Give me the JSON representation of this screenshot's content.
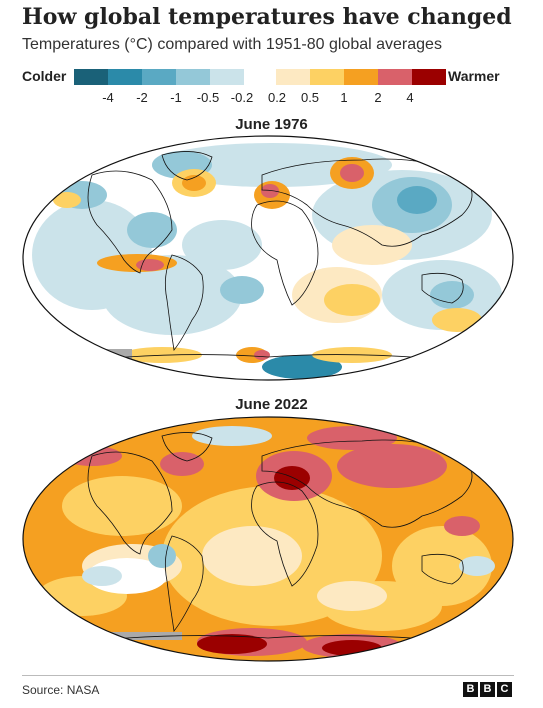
{
  "header": {
    "title": "How global temperatures have changed",
    "subtitle": "Temperatures (°C) compared with 1951-80 global averages"
  },
  "legend": {
    "cold_label": "Colder",
    "warm_label": "Warmer",
    "cold_colors": [
      "#1a6178",
      "#2b8aa9",
      "#5aa9c3",
      "#94c8d8",
      "#cbe3ea"
    ],
    "warm_colors": [
      "#fde9c2",
      "#fdd163",
      "#f5a021",
      "#d9616a",
      "#9b0000"
    ],
    "ticks": [
      "-4",
      "-2",
      "-1",
      "-0.5",
      "-0.2",
      "0.2",
      "0.5",
      "1",
      "2",
      "4"
    ]
  },
  "maps": [
    {
      "title": "June 1976",
      "tone": "cold"
    },
    {
      "title": "June 2022",
      "tone": "warm"
    }
  ],
  "footer": {
    "source": "Source: NASA",
    "logo": [
      "B",
      "B",
      "C"
    ]
  }
}
